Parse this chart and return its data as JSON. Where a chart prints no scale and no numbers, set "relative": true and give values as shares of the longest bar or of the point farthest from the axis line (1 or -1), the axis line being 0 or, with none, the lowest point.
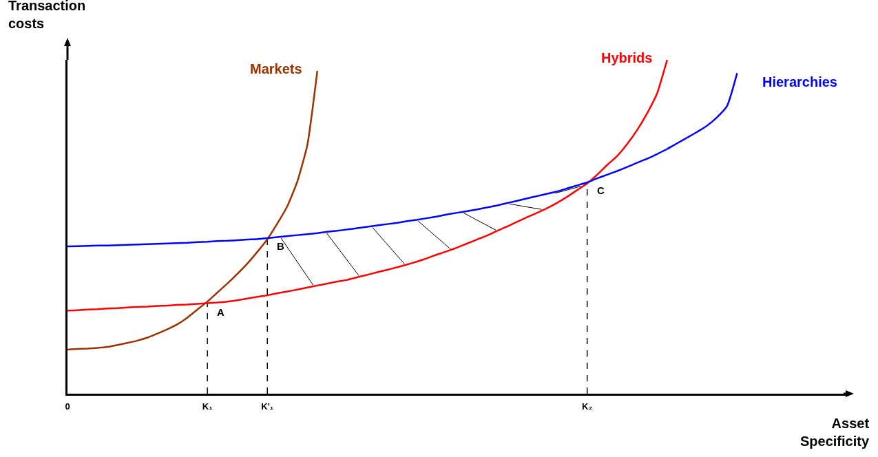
{
  "chart_data": {
    "type": "line",
    "relative": true,
    "xlabel": "Asset Specificity",
    "ylabel": "Transaction costs",
    "categories": [
      "0",
      null,
      null,
      null,
      null,
      null,
      null,
      null,
      null,
      null,
      null,
      null,
      null,
      null,
      "K₁",
      null,
      null,
      null,
      null,
      null,
      "K'₁",
      null,
      null,
      null,
      null,
      null,
      null,
      null,
      null,
      null,
      null,
      null,
      null,
      null,
      null,
      null,
      null,
      null,
      null,
      null,
      null,
      null,
      null,
      null,
      null,
      null,
      null,
      null,
      null,
      null,
      null,
      null,
      "K₂",
      null,
      null,
      null,
      null,
      null,
      null,
      null,
      null,
      null,
      null,
      null,
      null,
      null,
      null,
      null,
      null,
      null,
      null,
      null,
      null,
      null,
      null,
      null,
      null,
      null,
      null
    ],
    "tick_labels": "x",
    "grid": false,
    "legend": false,
    "marker": "none",
    "line_style": "solid",
    "series": [
      {
        "name": "Markets",
        "color": "#993300",
        "values": [
          0.132,
          0.134,
          0.135,
          0.137,
          0.14,
          0.146,
          0.152,
          0.159,
          0.168,
          0.18,
          0.193,
          0.208,
          0.228,
          0.252,
          0.276,
          0.303,
          0.33,
          0.359,
          0.39,
          0.425,
          0.463,
          0.51,
          0.562,
          0.636,
          0.745,
          0.967,
          null,
          null,
          null,
          null,
          null,
          null,
          null,
          null,
          null,
          null,
          null,
          null,
          null,
          null,
          null,
          null,
          null,
          null,
          null,
          null,
          null,
          null,
          null,
          null,
          null,
          null,
          null,
          null,
          null,
          null,
          null,
          null,
          null,
          null,
          null,
          null,
          null,
          null,
          null,
          null,
          null,
          null,
          null,
          null,
          null,
          null,
          null,
          null,
          null,
          null,
          null,
          null,
          null
        ]
      },
      {
        "name": "Hybrids",
        "color": "#ff0000",
        "values": [
          0.249,
          0.25,
          0.252,
          0.253,
          0.255,
          0.256,
          0.258,
          0.26,
          0.261,
          0.263,
          0.264,
          0.266,
          0.267,
          0.269,
          0.271,
          0.273,
          0.276,
          0.28,
          0.285,
          0.29,
          0.295,
          0.301,
          0.306,
          0.312,
          0.318,
          0.324,
          0.33,
          0.336,
          0.341,
          0.349,
          0.356,
          0.364,
          0.371,
          0.379,
          0.387,
          0.396,
          0.406,
          0.417,
          0.427,
          0.438,
          0.45,
          0.462,
          0.474,
          0.488,
          0.501,
          0.515,
          0.529,
          0.542,
          0.556,
          0.572,
          0.59,
          0.61,
          0.63,
          0.656,
          0.685,
          0.712,
          0.748,
          0.79,
          0.84,
          0.9,
          1,
          null,
          null,
          null,
          null,
          null,
          null,
          null,
          null,
          null,
          null,
          null,
          null,
          null,
          null,
          null,
          null,
          null,
          null
        ]
      },
      {
        "name": "Hierarchies",
        "color": "#0000ff",
        "values": [
          0.441,
          0.442,
          0.443,
          0.444,
          0.444,
          0.445,
          0.446,
          0.447,
          0.448,
          0.449,
          0.45,
          0.451,
          0.452,
          0.454,
          0.455,
          0.457,
          0.458,
          0.46,
          0.462,
          0.463,
          0.466,
          0.469,
          0.472,
          0.475,
          0.478,
          0.481,
          0.485,
          0.488,
          0.492,
          0.496,
          0.5,
          0.504,
          0.508,
          0.512,
          0.517,
          0.521,
          0.526,
          0.531,
          0.537,
          0.542,
          0.547,
          0.552,
          0.558,
          0.564,
          0.571,
          0.578,
          0.585,
          0.592,
          0.599,
          0.606,
          0.615,
          0.624,
          0.633,
          0.645,
          0.656,
          0.667,
          0.679,
          0.692,
          0.704,
          0.718,
          0.733,
          0.75,
          0.767,
          0.784,
          0.803,
          0.828,
          0.862,
          0.96,
          null,
          null,
          null,
          null,
          null,
          null,
          null,
          null,
          null,
          null,
          null
        ]
      }
    ],
    "ref_lines": [
      {
        "axis": "x",
        "value": "K₁",
        "color": "#000000",
        "line_style": "dashed"
      },
      {
        "axis": "x",
        "value": "K'₁",
        "color": "#000000",
        "line_style": "dashed"
      },
      {
        "axis": "x",
        "value": "K₂",
        "color": "#000000",
        "line_style": "dashed"
      }
    ],
    "annotations": [
      {
        "text": "A",
        "x": "K₁",
        "y": 0.27
      },
      {
        "text": "B",
        "x": "K'₁",
        "y": 0.466
      },
      {
        "text": "C",
        "x": "K₂",
        "y": 0.635
      }
    ]
  }
}
